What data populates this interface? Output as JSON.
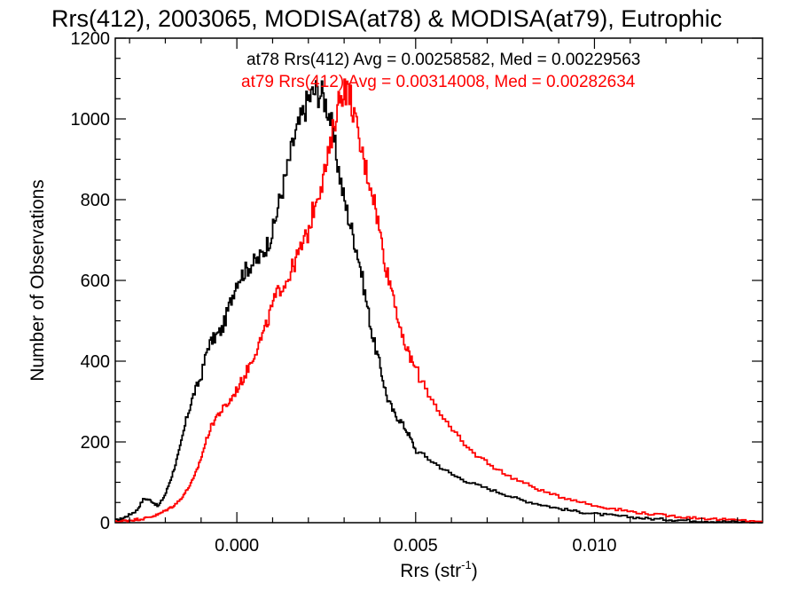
{
  "chart_data": {
    "type": "line",
    "title": "Rrs(412), 2003065, MODISA(at78) & MODISA(at79), Eutrophic",
    "xlabel_base": "Rrs (str",
    "xlabel_sup": "-1",
    "xlabel_close": ")",
    "ylabel": "Number of Observations",
    "xlim": [
      -0.0034,
      0.0147
    ],
    "ylim": [
      0,
      1200
    ],
    "xticks": [
      0.0,
      0.005,
      0.01
    ],
    "xtick_labels": [
      "0.000",
      "0.005",
      "0.010"
    ],
    "yticks": [
      0,
      200,
      400,
      600,
      800,
      1000,
      1200
    ],
    "ytick_labels": [
      "0",
      "200",
      "400",
      "600",
      "800",
      "1000",
      "1200"
    ],
    "grid": false,
    "colors": {
      "at78": "#000000",
      "at79": "#ff0000"
    },
    "annotations": [
      "at78 Rrs(412) Avg = 0.00258582, Med = 0.00229563",
      "at79 Rrs(412) Avg = 0.00314008, Med = 0.00282634"
    ],
    "series": [
      {
        "key": "at78",
        "x": [
          -0.0034,
          -0.0032,
          -0.003,
          -0.0028,
          -0.0026,
          -0.0024,
          -0.0022,
          -0.002,
          -0.0018,
          -0.0016,
          -0.0014,
          -0.0012,
          -0.001,
          -0.0008,
          -0.0006,
          -0.0004,
          -0.0002,
          0.0,
          0.0002,
          0.0004,
          0.0006,
          0.0008,
          0.001,
          0.0012,
          0.0014,
          0.0016,
          0.0018,
          0.002,
          0.0022,
          0.0024,
          0.0026,
          0.0028,
          0.003,
          0.0032,
          0.0034,
          0.0036,
          0.0038,
          0.004,
          0.0042,
          0.0044,
          0.0046,
          0.0048,
          0.005,
          0.0055,
          0.006,
          0.0065,
          0.007,
          0.0075,
          0.008,
          0.0085,
          0.009,
          0.0095,
          0.01,
          0.0105,
          0.011,
          0.0115,
          0.012,
          0.0125,
          0.013,
          0.0135,
          0.014,
          0.0147
        ],
        "y": [
          5,
          10,
          20,
          30,
          60,
          55,
          40,
          70,
          120,
          180,
          260,
          320,
          360,
          440,
          460,
          480,
          540,
          600,
          620,
          640,
          650,
          680,
          720,
          800,
          870,
          950,
          1000,
          1050,
          1070,
          1060,
          1010,
          900,
          800,
          730,
          660,
          560,
          460,
          390,
          310,
          270,
          250,
          220,
          180,
          150,
          120,
          100,
          85,
          70,
          55,
          45,
          35,
          28,
          22,
          18,
          14,
          10,
          8,
          6,
          4,
          3,
          2,
          1
        ]
      },
      {
        "key": "at79",
        "x": [
          -0.0034,
          -0.0032,
          -0.003,
          -0.0028,
          -0.0026,
          -0.0024,
          -0.0022,
          -0.002,
          -0.0018,
          -0.0016,
          -0.0014,
          -0.0012,
          -0.001,
          -0.0008,
          -0.0006,
          -0.0004,
          -0.0002,
          0.0,
          0.0002,
          0.0004,
          0.0006,
          0.0008,
          0.001,
          0.0012,
          0.0014,
          0.0016,
          0.0018,
          0.002,
          0.0022,
          0.0024,
          0.0026,
          0.0028,
          0.003,
          0.0032,
          0.0034,
          0.0036,
          0.0038,
          0.004,
          0.0042,
          0.0044,
          0.0046,
          0.0048,
          0.005,
          0.0055,
          0.006,
          0.0065,
          0.007,
          0.0075,
          0.008,
          0.0085,
          0.009,
          0.0095,
          0.01,
          0.0105,
          0.011,
          0.0115,
          0.012,
          0.0125,
          0.013,
          0.0135,
          0.014,
          0.0147
        ],
        "y": [
          2,
          4,
          6,
          8,
          10,
          15,
          20,
          30,
          40,
          55,
          80,
          110,
          160,
          220,
          260,
          280,
          300,
          330,
          360,
          400,
          440,
          480,
          540,
          580,
          600,
          640,
          680,
          720,
          800,
          850,
          920,
          1030,
          1080,
          1050,
          950,
          880,
          820,
          720,
          620,
          560,
          460,
          420,
          380,
          300,
          230,
          180,
          150,
          120,
          100,
          80,
          65,
          55,
          42,
          35,
          28,
          22,
          18,
          14,
          11,
          8,
          6,
          4
        ]
      }
    ]
  }
}
